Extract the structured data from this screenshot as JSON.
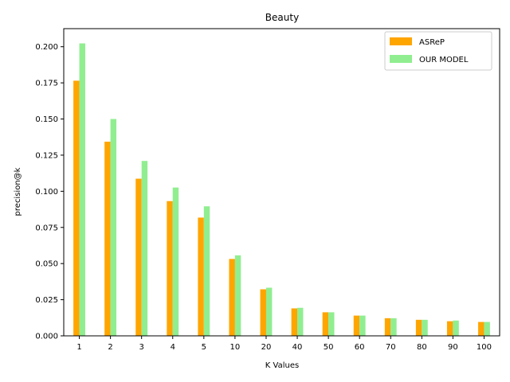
{
  "chart_data": {
    "type": "bar",
    "title": "Beauty",
    "xlabel": "K Values",
    "ylabel": "precision@k",
    "categories": [
      "1",
      "2",
      "3",
      "4",
      "5",
      "10",
      "20",
      "40",
      "50",
      "60",
      "70",
      "80",
      "90",
      "100"
    ],
    "series": [
      {
        "name": "ASReP",
        "color": "#ffa500",
        "values": [
          0.1765,
          0.1343,
          0.1087,
          0.0932,
          0.0818,
          0.0532,
          0.0322,
          0.019,
          0.0163,
          0.014,
          0.0122,
          0.0111,
          0.0101,
          0.0096
        ]
      },
      {
        "name": "OUR MODEL",
        "color": "#90ee90",
        "values": [
          0.2023,
          0.15,
          0.121,
          0.1026,
          0.0896,
          0.0557,
          0.0333,
          0.0194,
          0.0163,
          0.014,
          0.0122,
          0.0111,
          0.0106,
          0.0096
        ]
      }
    ],
    "ylim": [
      0,
      0.2125
    ],
    "yticks": [
      "0.000",
      "0.025",
      "0.050",
      "0.075",
      "0.100",
      "0.125",
      "0.150",
      "0.175",
      "0.200"
    ],
    "grid": false,
    "legend_position": "top-right"
  }
}
